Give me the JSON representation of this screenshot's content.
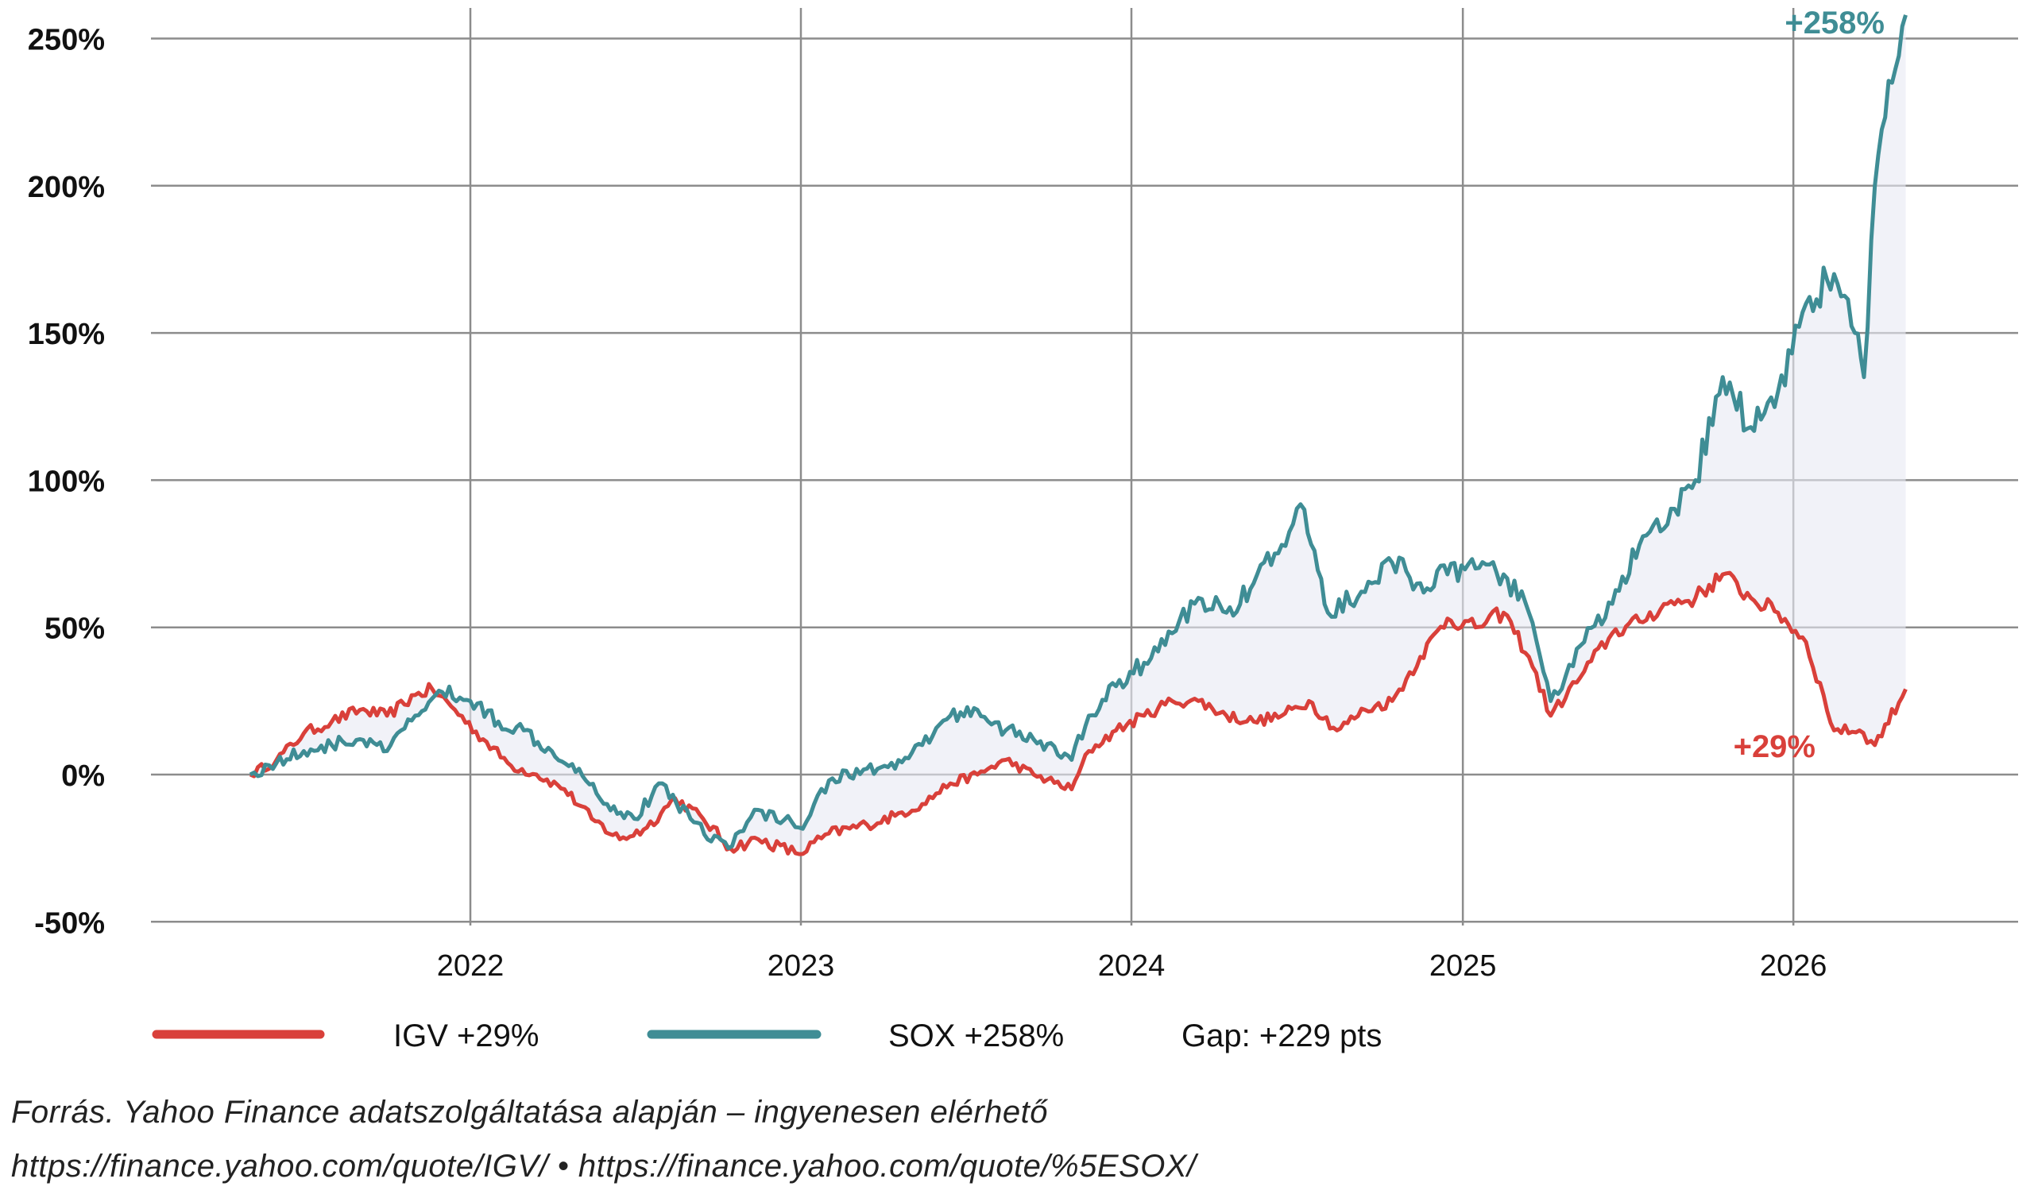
{
  "chart_data": {
    "type": "line",
    "title": "",
    "xlabel": "",
    "ylabel": "",
    "ylim": [
      -50,
      250
    ],
    "xlim": [
      "2021-04-15",
      "2026-08-15"
    ],
    "grid": true,
    "y_ticks": [
      -50,
      0,
      50,
      100,
      150,
      200,
      250
    ],
    "y_tick_labels": [
      "-50%",
      "0%",
      "50%",
      "100%",
      "150%",
      "200%",
      "250%"
    ],
    "x_ticks": [
      "2022-01-01",
      "2023-01-01",
      "2024-01-01",
      "2025-01-01",
      "2026-01-01"
    ],
    "x_tick_labels": [
      "2022",
      "2023",
      "2024",
      "2025",
      "2026"
    ],
    "shaded_gap": true,
    "series": [
      {
        "name": "IGV +29%",
        "color": "#d9403a",
        "end_label": "+29%",
        "points": [
          [
            "2021-05-03",
            0
          ],
          [
            "2021-06-01",
            5
          ],
          [
            "2021-07-01",
            14
          ],
          [
            "2021-08-01",
            18
          ],
          [
            "2021-09-01",
            22
          ],
          [
            "2021-10-01",
            20
          ],
          [
            "2021-11-01",
            27
          ],
          [
            "2021-11-20",
            29
          ],
          [
            "2021-12-15",
            22
          ],
          [
            "2022-01-15",
            12
          ],
          [
            "2022-02-15",
            3
          ],
          [
            "2022-03-15",
            0
          ],
          [
            "2022-04-15",
            -5
          ],
          [
            "2022-05-15",
            -15
          ],
          [
            "2022-06-15",
            -22
          ],
          [
            "2022-07-15",
            -18
          ],
          [
            "2022-08-15",
            -8
          ],
          [
            "2022-09-15",
            -15
          ],
          [
            "2022-10-15",
            -25
          ],
          [
            "2022-11-15",
            -22
          ],
          [
            "2022-12-30",
            -27
          ],
          [
            "2023-02-01",
            -20
          ],
          [
            "2023-03-15",
            -17
          ],
          [
            "2023-04-15",
            -14
          ],
          [
            "2023-05-15",
            -10
          ],
          [
            "2023-06-15",
            -3
          ],
          [
            "2023-07-15",
            0
          ],
          [
            "2023-08-15",
            5
          ],
          [
            "2023-09-15",
            0
          ],
          [
            "2023-10-27",
            -5
          ],
          [
            "2023-11-15",
            8
          ],
          [
            "2023-12-15",
            15
          ],
          [
            "2024-01-15",
            20
          ],
          [
            "2024-02-15",
            25
          ],
          [
            "2024-03-15",
            25
          ],
          [
            "2024-04-15",
            20
          ],
          [
            "2024-05-15",
            18
          ],
          [
            "2024-06-15",
            20
          ],
          [
            "2024-07-15",
            25
          ],
          [
            "2024-08-15",
            15
          ],
          [
            "2024-09-15",
            22
          ],
          [
            "2024-10-15",
            25
          ],
          [
            "2024-11-15",
            40
          ],
          [
            "2024-12-15",
            53
          ],
          [
            "2025-01-15",
            50
          ],
          [
            "2025-02-15",
            55
          ],
          [
            "2025-03-15",
            40
          ],
          [
            "2025-04-08",
            20
          ],
          [
            "2025-05-15",
            35
          ],
          [
            "2025-06-15",
            48
          ],
          [
            "2025-07-15",
            52
          ],
          [
            "2025-08-15",
            58
          ],
          [
            "2025-09-15",
            60
          ],
          [
            "2025-10-15",
            68
          ],
          [
            "2025-11-15",
            60
          ],
          [
            "2025-12-15",
            55
          ],
          [
            "2026-01-15",
            45
          ],
          [
            "2026-02-15",
            15
          ],
          [
            "2026-03-15",
            15
          ],
          [
            "2026-04-01",
            10
          ],
          [
            "2026-05-05",
            29
          ]
        ]
      },
      {
        "name": "SOX +258%",
        "color": "#3f8d95",
        "end_label": "+258%",
        "points": [
          [
            "2021-05-03",
            0
          ],
          [
            "2021-06-01",
            4
          ],
          [
            "2021-07-01",
            8
          ],
          [
            "2021-08-01",
            10
          ],
          [
            "2021-09-01",
            12
          ],
          [
            "2021-10-01",
            8
          ],
          [
            "2021-11-01",
            20
          ],
          [
            "2021-12-01",
            28
          ],
          [
            "2022-01-01",
            25
          ],
          [
            "2022-02-01",
            18
          ],
          [
            "2022-03-01",
            15
          ],
          [
            "2022-04-01",
            8
          ],
          [
            "2022-05-01",
            2
          ],
          [
            "2022-06-01",
            -10
          ],
          [
            "2022-07-01",
            -15
          ],
          [
            "2022-08-01",
            -3
          ],
          [
            "2022-09-01",
            -15
          ],
          [
            "2022-10-13",
            -25
          ],
          [
            "2022-11-15",
            -12
          ],
          [
            "2022-12-30",
            -18
          ],
          [
            "2023-02-01",
            -2
          ],
          [
            "2023-03-15",
            2
          ],
          [
            "2023-04-15",
            2
          ],
          [
            "2023-05-15",
            10
          ],
          [
            "2023-06-15",
            20
          ],
          [
            "2023-07-15",
            22
          ],
          [
            "2023-08-15",
            15
          ],
          [
            "2023-09-15",
            12
          ],
          [
            "2023-10-27",
            5
          ],
          [
            "2023-11-15",
            20
          ],
          [
            "2023-12-15",
            30
          ],
          [
            "2024-01-15",
            38
          ],
          [
            "2024-02-15",
            48
          ],
          [
            "2024-03-15",
            60
          ],
          [
            "2024-04-15",
            55
          ],
          [
            "2024-05-15",
            65
          ],
          [
            "2024-06-15",
            78
          ],
          [
            "2024-07-10",
            90
          ],
          [
            "2024-08-05",
            55
          ],
          [
            "2024-09-15",
            62
          ],
          [
            "2024-10-15",
            72
          ],
          [
            "2024-11-15",
            65
          ],
          [
            "2024-12-15",
            68
          ],
          [
            "2025-01-15",
            70
          ],
          [
            "2025-02-15",
            68
          ],
          [
            "2025-03-15",
            55
          ],
          [
            "2025-04-08",
            25
          ],
          [
            "2025-05-15",
            45
          ],
          [
            "2025-06-15",
            58
          ],
          [
            "2025-07-15",
            78
          ],
          [
            "2025-08-15",
            85
          ],
          [
            "2025-09-15",
            100
          ],
          [
            "2025-10-15",
            135
          ],
          [
            "2025-11-15",
            118
          ],
          [
            "2025-12-15",
            130
          ],
          [
            "2026-01-15",
            160
          ],
          [
            "2026-02-15",
            170
          ],
          [
            "2026-03-10",
            150
          ],
          [
            "2026-03-20",
            135
          ],
          [
            "2026-04-01",
            200
          ],
          [
            "2026-04-20",
            235
          ],
          [
            "2026-05-05",
            258
          ]
        ]
      }
    ],
    "legend": {
      "position": "bottom",
      "items": [
        "IGV +29%",
        "SOX +258%",
        "Gap: +229 pts"
      ]
    }
  },
  "source": {
    "line1": "Forrás. Yahoo Finance adatszolgáltatása alapján – ingyenesen elérhető",
    "line2": "https://finance.yahoo.com/quote/IGV/ • https://finance.yahoo.com/quote/%5ESOX/"
  }
}
